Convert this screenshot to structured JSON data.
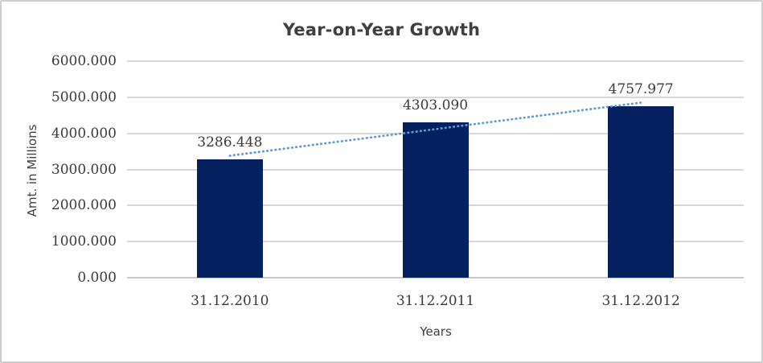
{
  "chart_data": {
    "type": "bar",
    "title": "Year-on-Year Growth",
    "xlabel": "Years",
    "ylabel": "Amt. in Millions",
    "categories": [
      "31.12.2010",
      "31.12.2011",
      "31.12.2012"
    ],
    "values": [
      3286.448,
      4303.09,
      4757.977
    ],
    "data_labels": [
      "3286.448",
      "4303.090",
      "4757.977"
    ],
    "ylim": [
      0,
      6000
    ],
    "ytick_step": 1000,
    "ytick_labels": [
      "0.000",
      "1000.000",
      "2000.000",
      "3000.000",
      "4000.000",
      "5000.000",
      "6000.000"
    ],
    "legend": "none",
    "gridlines": "horizontal",
    "trendline": {
      "type": "linear",
      "style": "dotted"
    },
    "colors": {
      "bar": "#04205f",
      "trendline": "#5b9bd5",
      "gridline": "#d8d8d8",
      "axis_line": "#c9c9c9",
      "label_text": "#3a3a3a",
      "title_text": "#3f3f3f",
      "frame_border": "#cfcfcf",
      "background": "#ffffff"
    }
  }
}
